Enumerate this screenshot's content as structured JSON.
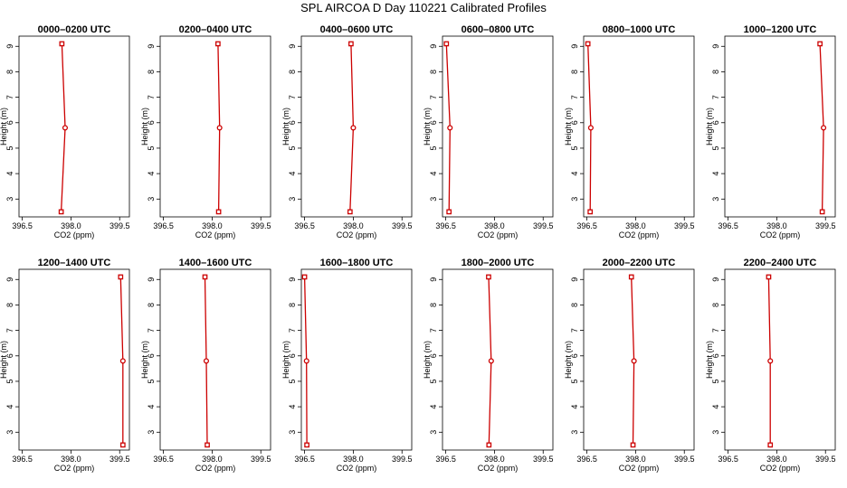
{
  "title": "SPL AIRCOA D  Day 110221  Calibrated Profiles",
  "series_color": "#cc0000",
  "chart_data": {
    "type": "line",
    "orientation": "vertical-profile",
    "xlabel": "CO2 (ppm)",
    "ylabel": "Height (m)",
    "xlim": [
      396.4,
      399.8
    ],
    "ylim": [
      2.3,
      9.4
    ],
    "xticks": [
      396.5,
      398.0,
      399.5
    ],
    "xtick_labels": [
      "396.5",
      "398.0",
      "399.5"
    ],
    "yticks": [
      3,
      4,
      5,
      6,
      7,
      8,
      9
    ],
    "ytick_labels": [
      "3",
      "4",
      "5",
      "6",
      "7",
      "8",
      "9"
    ],
    "heights": [
      2.5,
      5.8,
      9.1
    ],
    "panels": [
      {
        "title": "0000–0200 UTC",
        "co2": [
          397.7,
          397.82,
          397.72
        ]
      },
      {
        "title": "0200–0400 UTC",
        "co2": [
          398.2,
          398.23,
          398.18
        ]
      },
      {
        "title": "0400–0600 UTC",
        "co2": [
          397.9,
          398.0,
          397.93
        ]
      },
      {
        "title": "0600–0800 UTC",
        "co2": [
          396.6,
          396.63,
          396.52
        ]
      },
      {
        "title": "0800–1000 UTC",
        "co2": [
          396.6,
          396.62,
          396.53
        ]
      },
      {
        "title": "1000–1200 UTC",
        "co2": [
          399.4,
          399.44,
          399.33
        ]
      },
      {
        "title": "1200–1400 UTC",
        "co2": [
          399.6,
          399.6,
          399.53
        ]
      },
      {
        "title": "1400–1600 UTC",
        "co2": [
          397.85,
          397.82,
          397.78
        ]
      },
      {
        "title": "1600–1800 UTC",
        "co2": [
          396.57,
          396.56,
          396.5
        ]
      },
      {
        "title": "1800–2000 UTC",
        "co2": [
          397.83,
          397.9,
          397.82
        ]
      },
      {
        "title": "2000–2200 UTC",
        "co2": [
          397.92,
          397.95,
          397.87
        ]
      },
      {
        "title": "2200–2400 UTC",
        "co2": [
          397.8,
          397.8,
          397.75
        ]
      }
    ]
  }
}
